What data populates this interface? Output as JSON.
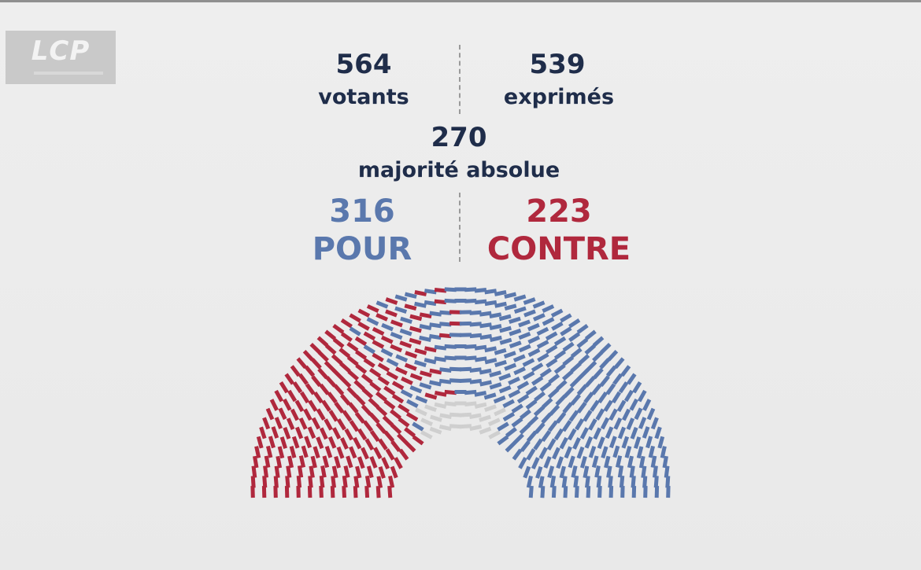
{
  "logo": {
    "text": "LCP"
  },
  "colors": {
    "pour": "#5a78ad",
    "contre": "#b0283d",
    "neutral": "#cfcfcf",
    "text": "#1f2d4a"
  },
  "stats": {
    "votants_value": "564",
    "votants_label": "votants",
    "exprimes_value": "539",
    "exprimes_label": "exprimés",
    "majorite_value": "270",
    "majorite_label": "majorité absolue",
    "pour_value": "316",
    "pour_label": "POUR",
    "contre_value": "223",
    "contre_label": "CONTRE"
  },
  "chart_data": {
    "type": "hemicycle",
    "title": "",
    "votants": 564,
    "exprimes": 539,
    "majorite_absolue": 270,
    "series": [
      {
        "name": "POUR",
        "value": 316
      },
      {
        "name": "CONTRE",
        "value": 223
      }
    ],
    "abstention_non_exprimes": 25
  }
}
